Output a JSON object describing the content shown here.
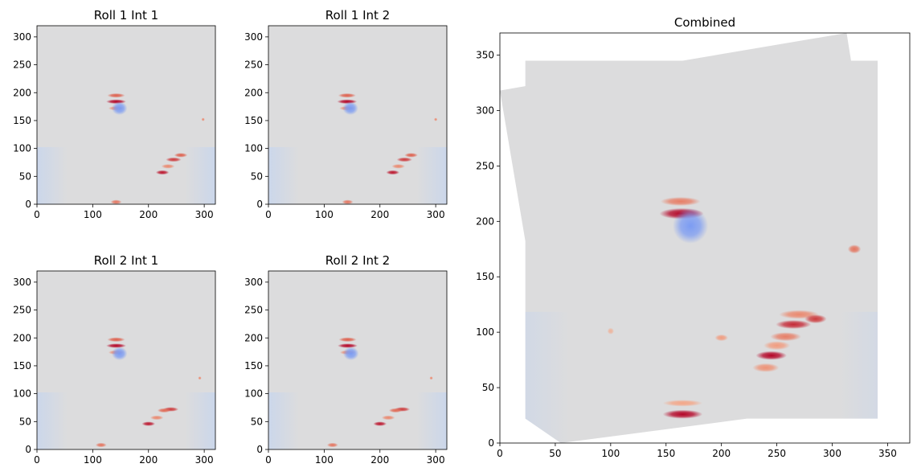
{
  "chart_data": [
    {
      "type": "heatmap",
      "title": "Roll 1 Int 1",
      "colormap": "coolwarm",
      "xlim": [
        0,
        320
      ],
      "ylim": [
        0,
        320
      ],
      "xticks": [
        0,
        100,
        200,
        300
      ],
      "yticks": [
        0,
        50,
        100,
        150,
        200,
        250,
        300
      ],
      "blobs": [
        {
          "x": 142,
          "y": 195,
          "value": 0.75,
          "sx": 16,
          "sy": 4
        },
        {
          "x": 142,
          "y": 184,
          "value": 1.0,
          "sx": 18,
          "sy": 4
        },
        {
          "x": 142,
          "y": 172,
          "value": 0.55,
          "sx": 14,
          "sy": 4
        },
        {
          "x": 148,
          "y": 172,
          "value": -0.65,
          "sx": 14,
          "sy": 12
        },
        {
          "x": 298,
          "y": 152,
          "value": 0.55,
          "sx": 3,
          "sy": 3
        },
        {
          "x": 258,
          "y": 88,
          "value": 0.75,
          "sx": 12,
          "sy": 4
        },
        {
          "x": 245,
          "y": 80,
          "value": 0.85,
          "sx": 14,
          "sy": 4
        },
        {
          "x": 235,
          "y": 68,
          "value": 0.55,
          "sx": 12,
          "sy": 4
        },
        {
          "x": 225,
          "y": 57,
          "value": 0.95,
          "sx": 12,
          "sy": 4
        },
        {
          "x": 142,
          "y": 4,
          "value": 0.65,
          "sx": 10,
          "sy": 4
        }
      ]
    },
    {
      "type": "heatmap",
      "title": "Roll 1 Int 2",
      "colormap": "coolwarm",
      "xlim": [
        0,
        320
      ],
      "ylim": [
        0,
        320
      ],
      "xticks": [
        0,
        100,
        200,
        300
      ],
      "yticks": [
        0,
        50,
        100,
        150,
        200,
        250,
        300
      ],
      "blobs": [
        {
          "x": 141,
          "y": 195,
          "value": 0.75,
          "sx": 16,
          "sy": 4
        },
        {
          "x": 141,
          "y": 184,
          "value": 1.0,
          "sx": 18,
          "sy": 4
        },
        {
          "x": 141,
          "y": 172,
          "value": 0.55,
          "sx": 14,
          "sy": 4
        },
        {
          "x": 147,
          "y": 172,
          "value": -0.65,
          "sx": 14,
          "sy": 12
        },
        {
          "x": 300,
          "y": 152,
          "value": 0.55,
          "sx": 3,
          "sy": 3
        },
        {
          "x": 256,
          "y": 88,
          "value": 0.75,
          "sx": 12,
          "sy": 4
        },
        {
          "x": 244,
          "y": 80,
          "value": 0.85,
          "sx": 14,
          "sy": 4
        },
        {
          "x": 233,
          "y": 68,
          "value": 0.55,
          "sx": 12,
          "sy": 4
        },
        {
          "x": 223,
          "y": 57,
          "value": 0.95,
          "sx": 12,
          "sy": 4
        },
        {
          "x": 142,
          "y": 4,
          "value": 0.65,
          "sx": 10,
          "sy": 4
        }
      ]
    },
    {
      "type": "heatmap",
      "title": "Roll 2 Int 1",
      "colormap": "coolwarm",
      "xlim": [
        0,
        320
      ],
      "ylim": [
        0,
        320
      ],
      "xticks": [
        0,
        100,
        200,
        300
      ],
      "yticks": [
        0,
        50,
        100,
        150,
        200,
        250,
        300
      ],
      "blobs": [
        {
          "x": 142,
          "y": 197,
          "value": 0.75,
          "sx": 16,
          "sy": 4
        },
        {
          "x": 142,
          "y": 186,
          "value": 1.0,
          "sx": 18,
          "sy": 4
        },
        {
          "x": 142,
          "y": 174,
          "value": 0.55,
          "sx": 14,
          "sy": 4
        },
        {
          "x": 148,
          "y": 172,
          "value": -0.65,
          "sx": 14,
          "sy": 12
        },
        {
          "x": 292,
          "y": 128,
          "value": 0.55,
          "sx": 3,
          "sy": 3
        },
        {
          "x": 240,
          "y": 72,
          "value": 0.85,
          "sx": 14,
          "sy": 4
        },
        {
          "x": 228,
          "y": 70,
          "value": 0.7,
          "sx": 12,
          "sy": 4
        },
        {
          "x": 215,
          "y": 57,
          "value": 0.55,
          "sx": 12,
          "sy": 4
        },
        {
          "x": 200,
          "y": 46,
          "value": 0.95,
          "sx": 12,
          "sy": 4
        },
        {
          "x": 115,
          "y": 8,
          "value": 0.65,
          "sx": 10,
          "sy": 4
        }
      ]
    },
    {
      "type": "heatmap",
      "title": "Roll 2 Int 2",
      "colormap": "coolwarm",
      "xlim": [
        0,
        320
      ],
      "ylim": [
        0,
        320
      ],
      "xticks": [
        0,
        100,
        200,
        300
      ],
      "yticks": [
        0,
        50,
        100,
        150,
        200,
        250,
        300
      ],
      "blobs": [
        {
          "x": 142,
          "y": 197,
          "value": 0.75,
          "sx": 16,
          "sy": 4
        },
        {
          "x": 142,
          "y": 186,
          "value": 1.0,
          "sx": 18,
          "sy": 4
        },
        {
          "x": 142,
          "y": 174,
          "value": 0.55,
          "sx": 14,
          "sy": 4
        },
        {
          "x": 148,
          "y": 172,
          "value": -0.65,
          "sx": 14,
          "sy": 12
        },
        {
          "x": 292,
          "y": 128,
          "value": 0.55,
          "sx": 3,
          "sy": 3
        },
        {
          "x": 240,
          "y": 72,
          "value": 0.85,
          "sx": 14,
          "sy": 4
        },
        {
          "x": 228,
          "y": 70,
          "value": 0.7,
          "sx": 12,
          "sy": 4
        },
        {
          "x": 215,
          "y": 57,
          "value": 0.55,
          "sx": 12,
          "sy": 4
        },
        {
          "x": 200,
          "y": 46,
          "value": 0.95,
          "sx": 12,
          "sy": 4
        },
        {
          "x": 115,
          "y": 8,
          "value": 0.65,
          "sx": 10,
          "sy": 4
        }
      ]
    },
    {
      "type": "heatmap",
      "title": "Combined",
      "colormap": "coolwarm",
      "xlim": [
        0,
        370
      ],
      "ylim": [
        0,
        370
      ],
      "xticks": [
        0,
        50,
        100,
        150,
        200,
        250,
        300,
        350
      ],
      "yticks": [
        0,
        50,
        100,
        150,
        200,
        250,
        300,
        350
      ],
      "footprint": [
        [
          0,
          318
        ],
        [
          23,
          322
        ],
        [
          23,
          345
        ],
        [
          165,
          345
        ],
        [
          313,
          370
        ],
        [
          317,
          345
        ],
        [
          341,
          345
        ],
        [
          341,
          22
        ],
        [
          268,
          22
        ],
        [
          223,
          22
        ],
        [
          55,
          0
        ],
        [
          23,
          22
        ],
        [
          23,
          182
        ]
      ],
      "blobs": [
        {
          "x": 163,
          "y": 218,
          "value": 0.6,
          "sx": 18,
          "sy": 4
        },
        {
          "x": 164,
          "y": 207,
          "value": 1.0,
          "sx": 20,
          "sy": 5
        },
        {
          "x": 172,
          "y": 196,
          "value": -0.65,
          "sx": 16,
          "sy": 16
        },
        {
          "x": 320,
          "y": 175,
          "value": 0.65,
          "sx": 6,
          "sy": 4
        },
        {
          "x": 270,
          "y": 116,
          "value": 0.55,
          "sx": 18,
          "sy": 4
        },
        {
          "x": 285,
          "y": 112,
          "value": 0.85,
          "sx": 10,
          "sy": 4
        },
        {
          "x": 265,
          "y": 107,
          "value": 0.9,
          "sx": 16,
          "sy": 4
        },
        {
          "x": 258,
          "y": 96,
          "value": 0.6,
          "sx": 14,
          "sy": 4
        },
        {
          "x": 250,
          "y": 88,
          "value": 0.45,
          "sx": 12,
          "sy": 4
        },
        {
          "x": 245,
          "y": 79,
          "value": 1.0,
          "sx": 14,
          "sy": 4
        },
        {
          "x": 240,
          "y": 68,
          "value": 0.5,
          "sx": 12,
          "sy": 4
        },
        {
          "x": 200,
          "y": 95,
          "value": 0.45,
          "sx": 6,
          "sy": 3
        },
        {
          "x": 100,
          "y": 101,
          "value": 0.3,
          "sx": 3,
          "sy": 3
        },
        {
          "x": 165,
          "y": 36,
          "value": 0.4,
          "sx": 18,
          "sy": 3
        },
        {
          "x": 165,
          "y": 26,
          "value": 1.0,
          "sx": 18,
          "sy": 4
        }
      ]
    }
  ]
}
